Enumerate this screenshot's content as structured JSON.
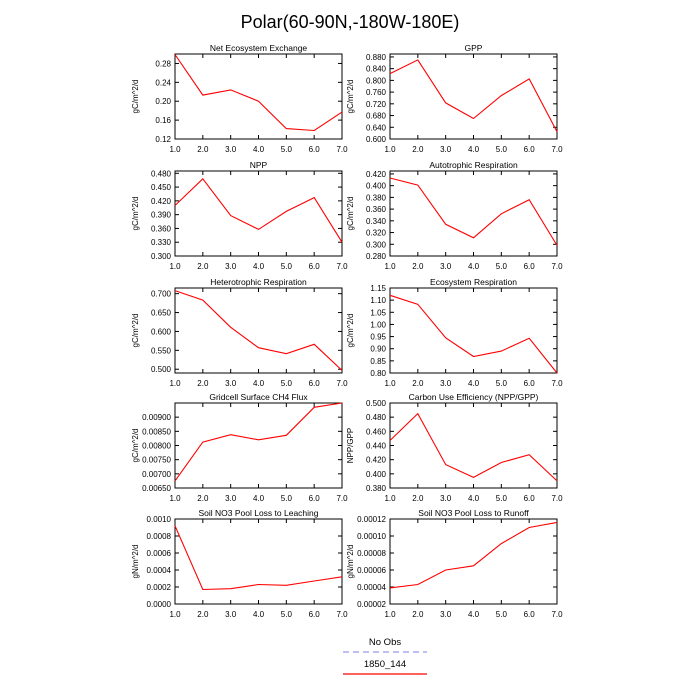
{
  "figure": {
    "title": "Polar(60-90N,-180W-180E)"
  },
  "legend": {
    "entries": [
      {
        "label": "No Obs",
        "color": "#9999ee",
        "style": "dashed"
      },
      {
        "label": "1850_144",
        "color": "#ff0000",
        "style": "solid"
      }
    ]
  },
  "chart_data": [
    {
      "type": "line",
      "title": "Net Ecosystem Exchange",
      "ylabel": "gC/m^2/d",
      "x": [
        1,
        2,
        3,
        4,
        5,
        6,
        7
      ],
      "xticks": [
        "1.0",
        "2.0",
        "3.0",
        "4.0",
        "5.0",
        "6.0",
        "7.0"
      ],
      "xlim": [
        1,
        7
      ],
      "ylim": [
        0.12,
        0.3
      ],
      "yticks": [
        "0.12",
        "0.16",
        "0.20",
        "0.24",
        "0.28"
      ],
      "series": [
        {
          "values": [
            0.299,
            0.213,
            0.224,
            0.2,
            0.142,
            0.138,
            0.177
          ],
          "color": "#ff0000"
        }
      ]
    },
    {
      "type": "line",
      "title": "GPP",
      "ylabel": "gC/m^2/d",
      "x": [
        1,
        2,
        3,
        4,
        5,
        6,
        7
      ],
      "xticks": [
        "1.0",
        "2.0",
        "3.0",
        "4.0",
        "5.0",
        "6.0",
        "7.0"
      ],
      "xlim": [
        1,
        7
      ],
      "ylim": [
        0.6,
        0.89
      ],
      "yticks": [
        "0.600",
        "0.640",
        "0.680",
        "0.720",
        "0.760",
        "0.800",
        "0.840",
        "0.880"
      ],
      "series": [
        {
          "values": [
            0.823,
            0.87,
            0.723,
            0.67,
            0.748,
            0.805,
            0.625
          ],
          "color": "#ff0000"
        }
      ]
    },
    {
      "type": "line",
      "title": "NPP",
      "ylabel": "gC/m^2/d",
      "x": [
        1,
        2,
        3,
        4,
        5,
        6,
        7
      ],
      "xticks": [
        "1.0",
        "2.0",
        "3.0",
        "4.0",
        "5.0",
        "6.0",
        "7.0"
      ],
      "xlim": [
        1,
        7
      ],
      "ylim": [
        0.3,
        0.485
      ],
      "yticks": [
        "0.300",
        "0.330",
        "0.360",
        "0.390",
        "0.420",
        "0.450",
        "0.480"
      ],
      "series": [
        {
          "values": [
            0.41,
            0.468,
            0.388,
            0.358,
            0.397,
            0.427,
            0.33
          ],
          "color": "#ff0000"
        }
      ]
    },
    {
      "type": "line",
      "title": "Autotrophic Respiration",
      "ylabel": "gC/m^2/d",
      "x": [
        1,
        2,
        3,
        4,
        5,
        6,
        7
      ],
      "xticks": [
        "1.0",
        "2.0",
        "3.0",
        "4.0",
        "5.0",
        "6.0",
        "7.0"
      ],
      "xlim": [
        1,
        7
      ],
      "ylim": [
        0.28,
        0.425
      ],
      "yticks": [
        "0.280",
        "0.300",
        "0.320",
        "0.340",
        "0.360",
        "0.380",
        "0.400",
        "0.420"
      ],
      "series": [
        {
          "values": [
            0.413,
            0.401,
            0.334,
            0.311,
            0.352,
            0.376,
            0.298
          ],
          "color": "#ff0000"
        }
      ]
    },
    {
      "type": "line",
      "title": "Heterotrophic Respiration",
      "ylabel": "gC/m^2/d",
      "x": [
        1,
        2,
        3,
        4,
        5,
        6,
        7
      ],
      "xticks": [
        "1.0",
        "2.0",
        "3.0",
        "4.0",
        "5.0",
        "6.0",
        "7.0"
      ],
      "xlim": [
        1,
        7
      ],
      "ylim": [
        0.49,
        0.715
      ],
      "yticks": [
        "0.500",
        "0.550",
        "0.600",
        "0.650",
        "0.700"
      ],
      "series": [
        {
          "values": [
            0.708,
            0.683,
            0.611,
            0.557,
            0.541,
            0.566,
            0.497
          ],
          "color": "#ff0000"
        }
      ]
    },
    {
      "type": "line",
      "title": "Ecosystem Respiration",
      "ylabel": "gC/m^2/d",
      "x": [
        1,
        2,
        3,
        4,
        5,
        6,
        7
      ],
      "xticks": [
        "1.0",
        "2.0",
        "3.0",
        "4.0",
        "5.0",
        "6.0",
        "7.0"
      ],
      "xlim": [
        1,
        7
      ],
      "ylim": [
        0.8,
        1.15
      ],
      "yticks": [
        "0.80",
        "0.85",
        "0.90",
        "0.95",
        "1.00",
        "1.05",
        "1.10",
        "1.15"
      ],
      "series": [
        {
          "values": [
            1.12,
            1.083,
            0.945,
            0.868,
            0.89,
            0.943,
            0.8
          ],
          "color": "#ff0000"
        }
      ]
    },
    {
      "type": "line",
      "title": "Gridcell Surface CH4 Flux",
      "ylabel": "gC/m^2/d",
      "x": [
        1,
        2,
        3,
        4,
        5,
        6,
        7
      ],
      "xticks": [
        "1.0",
        "2.0",
        "3.0",
        "4.0",
        "5.0",
        "6.0",
        "7.0"
      ],
      "xlim": [
        1,
        7
      ],
      "ylim": [
        0.0065,
        0.0095
      ],
      "yticks": [
        "0.00650",
        "0.00700",
        "0.00750",
        "0.00800",
        "0.00850",
        "0.00900"
      ],
      "series": [
        {
          "values": [
            0.00675,
            0.00812,
            0.00838,
            0.0082,
            0.00836,
            0.00935,
            0.0095
          ],
          "color": "#ff0000"
        }
      ]
    },
    {
      "type": "line",
      "title": "Carbon Use Efficiency (NPP/GPP)",
      "ylabel": "NPP/GPP",
      "x": [
        1,
        2,
        3,
        4,
        5,
        6,
        7
      ],
      "xticks": [
        "1.0",
        "2.0",
        "3.0",
        "4.0",
        "5.0",
        "6.0",
        "7.0"
      ],
      "xlim": [
        1,
        7
      ],
      "ylim": [
        0.38,
        0.5
      ],
      "yticks": [
        "0.380",
        "0.400",
        "0.420",
        "0.440",
        "0.460",
        "0.480",
        "0.500"
      ],
      "series": [
        {
          "values": [
            0.447,
            0.485,
            0.413,
            0.395,
            0.416,
            0.427,
            0.39
          ],
          "color": "#ff0000"
        }
      ]
    },
    {
      "type": "line",
      "title": "Soil NO3 Pool Loss to Leaching",
      "ylabel": "gN/m^2/d",
      "x": [
        1,
        2,
        3,
        4,
        5,
        6,
        7
      ],
      "xticks": [
        "1.0",
        "2.0",
        "3.0",
        "4.0",
        "5.0",
        "6.0",
        "7.0"
      ],
      "xlim": [
        1,
        7
      ],
      "ylim": [
        0.0,
        0.001
      ],
      "yticks": [
        "0.0000",
        "0.0002",
        "0.0004",
        "0.0006",
        "0.0008",
        "0.0010"
      ],
      "series": [
        {
          "values": [
            0.00092,
            0.00017,
            0.00018,
            0.00023,
            0.00022,
            0.00027,
            0.00032
          ],
          "color": "#ff0000"
        }
      ]
    },
    {
      "type": "line",
      "title": "Soil NO3 Pool Loss to Runoff",
      "ylabel": "gN/m^2/d",
      "x": [
        1,
        2,
        3,
        4,
        5,
        6,
        7
      ],
      "xticks": [
        "1.0",
        "2.0",
        "3.0",
        "4.0",
        "5.0",
        "6.0",
        "7.0"
      ],
      "xlim": [
        1,
        7
      ],
      "ylim": [
        2e-05,
        0.00012
      ],
      "yticks": [
        "0.00002",
        "0.00004",
        "0.00006",
        "0.00008",
        "0.00010",
        "0.00012"
      ],
      "series": [
        {
          "values": [
            3.9e-05,
            4.3e-05,
            6e-05,
            6.5e-05,
            9.1e-05,
            0.00011,
            0.000116
          ],
          "color": "#ff0000"
        }
      ]
    }
  ]
}
